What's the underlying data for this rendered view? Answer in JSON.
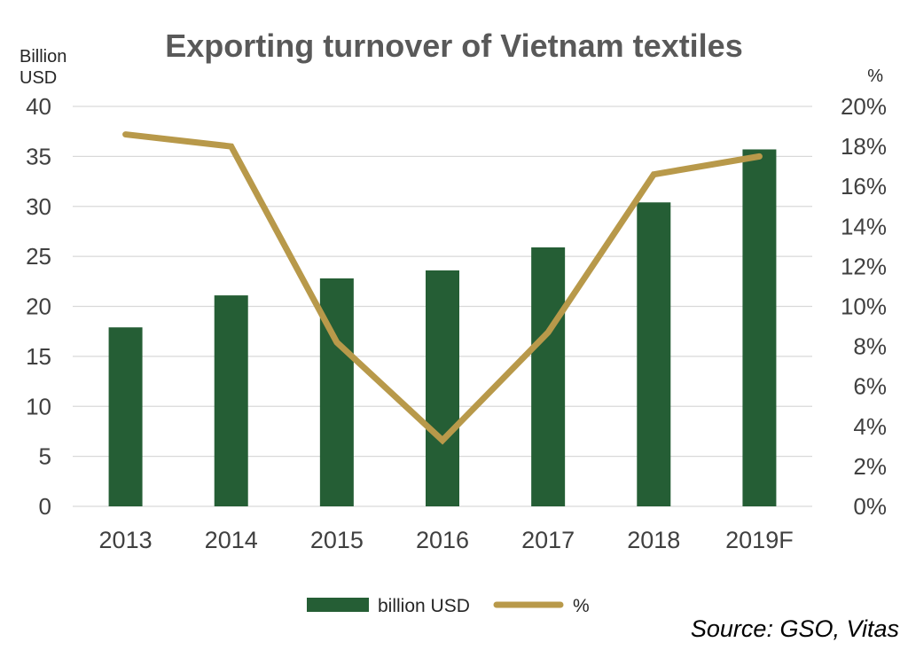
{
  "chart_data": {
    "type": "bar",
    "title": "Exporting turnover of Vietnam textiles",
    "categories": [
      "2013",
      "2014",
      "2015",
      "2016",
      "2017",
      "2018",
      "2019F"
    ],
    "y_left": {
      "label": "Billion USD",
      "label_lines": [
        "Billion",
        "USD"
      ],
      "ylim": [
        0,
        40
      ],
      "ticks": [
        0,
        5,
        10,
        15,
        20,
        25,
        30,
        35,
        40
      ]
    },
    "y_right": {
      "label": "%",
      "ylim": [
        0,
        20
      ],
      "ticks": [
        "0%",
        "2%",
        "4%",
        "6%",
        "8%",
        "10%",
        "12%",
        "14%",
        "16%",
        "18%",
        "20%"
      ]
    },
    "series": [
      {
        "name": "billion USD",
        "type": "bar",
        "axis": "left",
        "color": "#255e35",
        "values": [
          17.9,
          21.1,
          22.8,
          23.6,
          25.9,
          30.4,
          35.7
        ]
      },
      {
        "name": "%",
        "type": "line",
        "axis": "right",
        "color": "#b8994a",
        "values": [
          18.6,
          18.0,
          8.2,
          3.3,
          8.7,
          16.6,
          17.5
        ]
      }
    ],
    "grid": true,
    "legend": "bottom"
  },
  "source": "Source: GSO, Vitas"
}
